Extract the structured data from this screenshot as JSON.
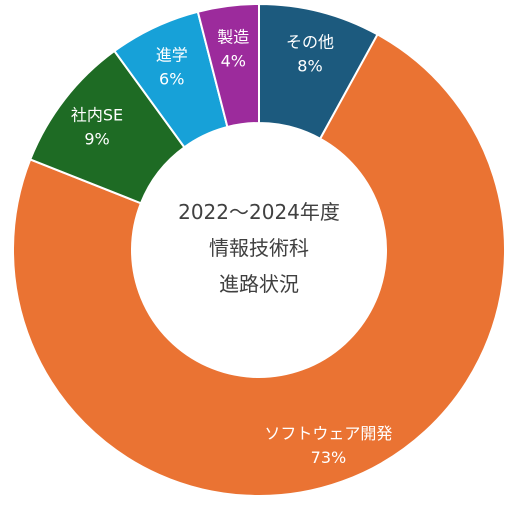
{
  "chart_data": {
    "type": "pie",
    "donut": true,
    "center_title_lines": [
      "2022～2024年度",
      "情報技術科",
      "進路状況"
    ],
    "start_angle_deg": 0,
    "direction": "clockwise",
    "slices": [
      {
        "label": "その他",
        "percent_label": "8%",
        "value": 8,
        "color": "#1c5a7e"
      },
      {
        "label": "ソフトウェア開発",
        "percent_label": "73%",
        "value": 73,
        "color": "#ea7333"
      },
      {
        "label": "社内SE",
        "percent_label": "9%",
        "value": 9,
        "color": "#1e6b24"
      },
      {
        "label": "進学",
        "percent_label": "6%",
        "value": 6,
        "color": "#17a1d8"
      },
      {
        "label": "製造",
        "percent_label": "4%",
        "value": 4,
        "color": "#9c2b9c"
      }
    ]
  }
}
